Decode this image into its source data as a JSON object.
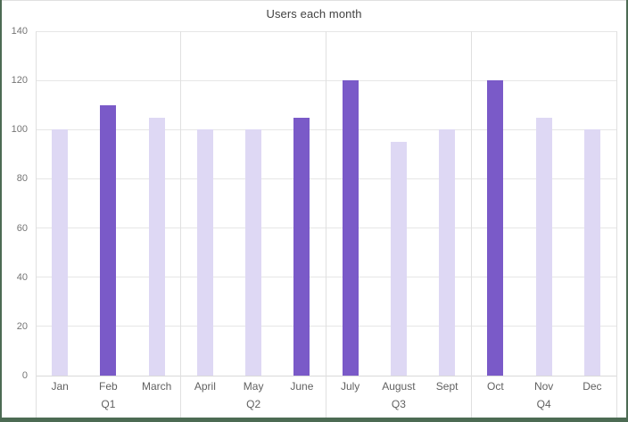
{
  "frame": {
    "border_color": "#4c6b53",
    "top_border_color": "#e0e0e0",
    "background": "#ffffff"
  },
  "chart_data": {
    "type": "bar",
    "title": "Users each month",
    "categories": [
      "Jan",
      "Feb",
      "March",
      "April",
      "May",
      "June",
      "July",
      "August",
      "Sept",
      "Oct",
      "Nov",
      "Dec"
    ],
    "values": [
      100,
      110,
      105,
      100,
      100,
      105,
      120,
      95,
      100,
      120,
      105,
      100
    ],
    "highlighted_categories": [
      "Feb",
      "June",
      "July",
      "Oct"
    ],
    "groups": [
      {
        "label": "Q1",
        "categories": [
          "Jan",
          "Feb",
          "March"
        ]
      },
      {
        "label": "Q2",
        "categories": [
          "April",
          "May",
          "June"
        ]
      },
      {
        "label": "Q3",
        "categories": [
          "July",
          "August",
          "Sept"
        ]
      },
      {
        "label": "Q4",
        "categories": [
          "Oct",
          "Nov",
          "Dec"
        ]
      }
    ],
    "xlabel": "",
    "ylabel": "",
    "ylim": [
      0,
      140
    ],
    "yticks": [
      0,
      20,
      40,
      60,
      80,
      100,
      120,
      140
    ],
    "grid": true,
    "legend": "none",
    "colors": {
      "bar_default": "#ded8f4",
      "bar_highlight": "#7a5ac8",
      "gridline": "#e6e6e6",
      "axis_line": "#d9d9d9",
      "divider_line": "#e0e0e0",
      "title_text": "#424242",
      "axis_text": "#616161",
      "ytick_text": "#757575"
    }
  }
}
